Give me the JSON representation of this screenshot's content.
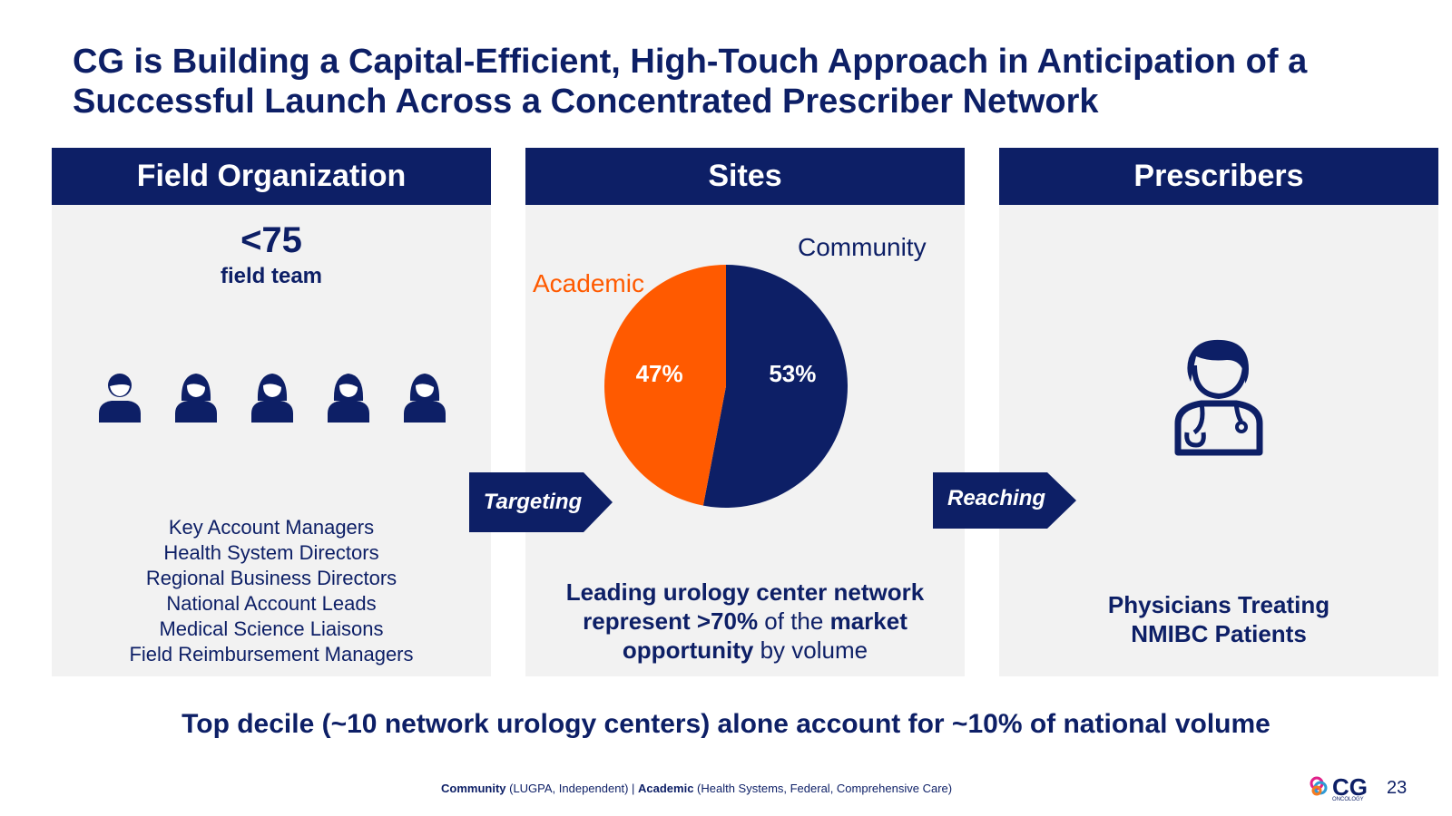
{
  "slide": {
    "title": "CG is Building a Capital-Efficient, High-Touch Approach in Anticipation of a Successful Launch Across a Concentrated Prescriber Network",
    "bottom_line": "Top decile (~10 network urology centers) alone account for ~10% of national volume",
    "page_number": "23"
  },
  "field": {
    "header": "Field Organization",
    "count": "<75",
    "count_label": "field team",
    "roles": [
      "Key Account Managers",
      "Health System Directors",
      "Regional Business Directors",
      "National Account Leads",
      "Medical Science Liaisons",
      "Field Reimbursement Managers"
    ]
  },
  "sites": {
    "header": "Sites",
    "note_bold_1": "Leading urology center network",
    "note_bold_2": "represent >70%",
    "note_plain_2": " of the ",
    "note_bold_3": "market",
    "note_bold_4": "opportunity",
    "note_plain_4": " by volume"
  },
  "arrows": {
    "targeting": "Targeting",
    "reaching": "Reaching"
  },
  "prescribers": {
    "header": "Prescribers",
    "line1": "Physicians Treating",
    "line2": "NMIBC Patients"
  },
  "footnote": {
    "community_label": "Community",
    "community_detail": " (LUGPA, Independent) | ",
    "academic_label": "Academic",
    "academic_detail": " (Health Systems, Federal, Comprehensive Care)"
  },
  "logo": {
    "text": "CG",
    "sub": "ONCOLOGY"
  },
  "colors": {
    "navy": "#0d1f66",
    "orange": "#ff5a00",
    "panel_bg": "#f2f2f2"
  },
  "chart_data": {
    "type": "pie",
    "categories": [
      "Community",
      "Academic"
    ],
    "values": [
      53,
      47
    ],
    "data_labels": [
      "53%",
      "47%"
    ],
    "colors": [
      "#0d1f66",
      "#ff5a00"
    ]
  }
}
